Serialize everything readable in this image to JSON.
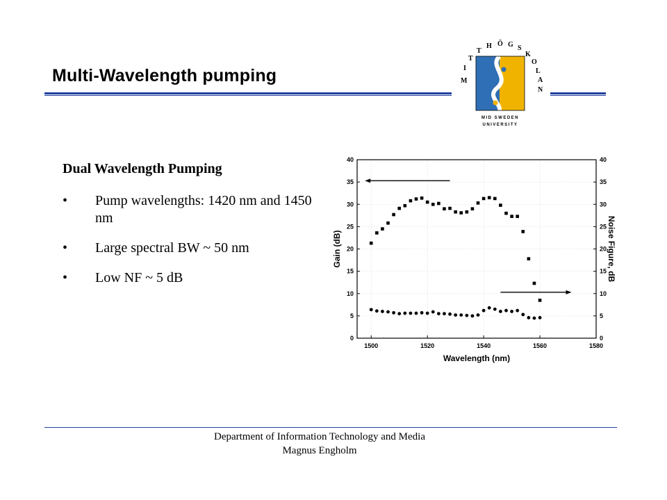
{
  "slide": {
    "title": "Multi-Wavelength  pumping",
    "logo_text": {
      "arc": "MITTHÖGSKOLAN",
      "line1": "MID SWEDEN",
      "line2": "UNIVERSITY"
    }
  },
  "content": {
    "heading": "Dual Wavelength Pumping",
    "bullets": [
      "Pump wavelengths: 1420 nm and 1450 nm",
      "Large spectral BW ~ 50 nm",
      "Low NF ~ 5 dB"
    ],
    "bullet_symbol": "•"
  },
  "footer": {
    "line1": "Department of Information Technology and Media",
    "line2": "Magnus Engholm"
  },
  "colors": {
    "accent_rule": "#1f3f9e",
    "logo_blue": "#2f6fb5",
    "logo_yellow": "#f0b400"
  },
  "chart_data": {
    "type": "scatter",
    "xlabel": "Wavelength (nm)",
    "ylabel": "Gain (dB)",
    "y2label": "Noise Figure, dB",
    "xlim": [
      1495,
      1580
    ],
    "ylim": [
      0,
      40
    ],
    "y2lim": [
      0,
      40
    ],
    "xticks": [
      1500,
      1520,
      1540,
      1560,
      1580
    ],
    "yticks": [
      0,
      5,
      10,
      15,
      20,
      25,
      30,
      35,
      40
    ],
    "grid": true,
    "series": [
      {
        "marker": "square",
        "axis": "left",
        "points": [
          [
            1500,
            21.3
          ],
          [
            1502,
            23.6
          ],
          [
            1504,
            24.5
          ],
          [
            1506,
            25.8
          ],
          [
            1508,
            27.7
          ],
          [
            1510,
            29.1
          ],
          [
            1512,
            29.7
          ],
          [
            1514,
            30.8
          ],
          [
            1516,
            31.2
          ],
          [
            1518,
            31.4
          ],
          [
            1520,
            30.5
          ],
          [
            1522,
            30.0
          ],
          [
            1524,
            30.2
          ],
          [
            1526,
            29.0
          ],
          [
            1528,
            29.1
          ],
          [
            1530,
            28.3
          ],
          [
            1532,
            28.1
          ],
          [
            1534,
            28.3
          ],
          [
            1536,
            29.0
          ],
          [
            1538,
            30.3
          ],
          [
            1540,
            31.3
          ],
          [
            1542,
            31.5
          ],
          [
            1544,
            31.3
          ],
          [
            1546,
            29.8
          ],
          [
            1548,
            28.0
          ],
          [
            1550,
            27.3
          ],
          [
            1552,
            27.3
          ],
          [
            1554,
            23.9
          ],
          [
            1556,
            17.8
          ],
          [
            1558,
            12.3
          ],
          [
            1560,
            8.5
          ]
        ]
      },
      {
        "marker": "circle",
        "axis": "right",
        "points": [
          [
            1500,
            6.4
          ],
          [
            1502,
            6.1
          ],
          [
            1504,
            6.0
          ],
          [
            1506,
            5.9
          ],
          [
            1508,
            5.7
          ],
          [
            1510,
            5.5
          ],
          [
            1512,
            5.6
          ],
          [
            1514,
            5.6
          ],
          [
            1516,
            5.6
          ],
          [
            1518,
            5.7
          ],
          [
            1520,
            5.6
          ],
          [
            1522,
            5.9
          ],
          [
            1524,
            5.5
          ],
          [
            1526,
            5.5
          ],
          [
            1528,
            5.4
          ],
          [
            1530,
            5.2
          ],
          [
            1532,
            5.2
          ],
          [
            1534,
            5.1
          ],
          [
            1536,
            5.0
          ],
          [
            1538,
            5.2
          ],
          [
            1540,
            6.2
          ],
          [
            1542,
            6.8
          ],
          [
            1544,
            6.5
          ],
          [
            1546,
            6.0
          ],
          [
            1548,
            6.2
          ],
          [
            1550,
            6.0
          ],
          [
            1552,
            6.2
          ],
          [
            1554,
            5.3
          ],
          [
            1556,
            4.6
          ],
          [
            1558,
            4.5
          ],
          [
            1560,
            4.6
          ]
        ]
      }
    ],
    "annotations": [
      "arrow-left (gain series uses left axis)",
      "arrow-right (noise figure uses right axis)"
    ]
  }
}
